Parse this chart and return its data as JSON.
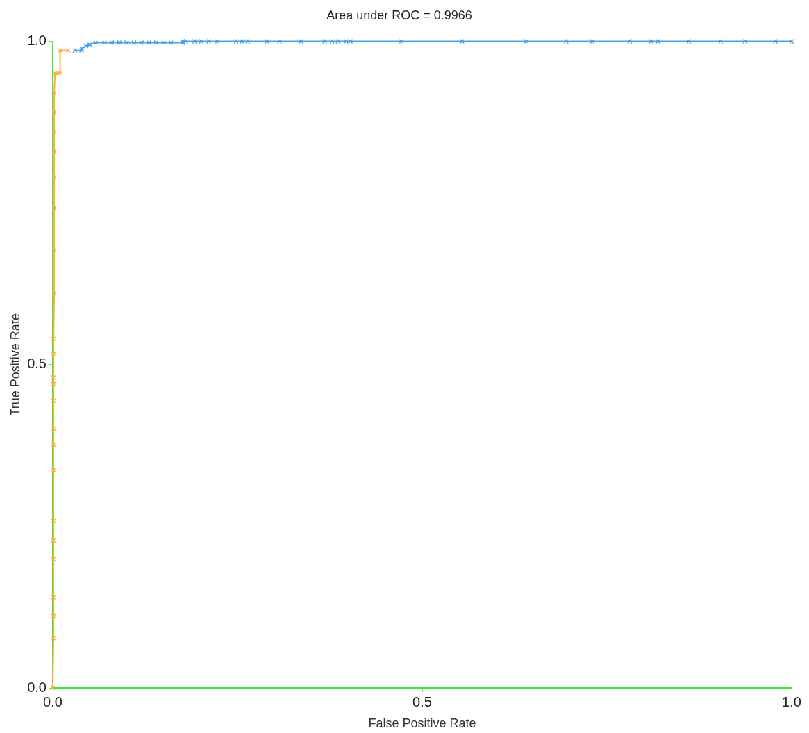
{
  "chart_data": {
    "type": "line",
    "title": "Area under ROC = 0.9966",
    "xlabel": "False Positive Rate",
    "ylabel": "True Positive Rate",
    "xlim": [
      0,
      1
    ],
    "ylim": [
      0,
      1
    ],
    "xticks": [
      {
        "value": 0,
        "label": "0.0"
      },
      {
        "value": 0.5,
        "label": "0.5"
      },
      {
        "value": 1,
        "label": "1.0"
      }
    ],
    "yticks": [
      {
        "value": 0,
        "label": "0.0"
      },
      {
        "value": 0.5,
        "label": "0.5"
      },
      {
        "value": 1,
        "label": "1.0"
      }
    ],
    "grid": false,
    "legend": false,
    "marker": "cross",
    "line_style": "solid",
    "series": [
      {
        "color": "#ffab40",
        "x": [
          0,
          0.001,
          0.001,
          0.001,
          0.001,
          0.001,
          0.001,
          0.001,
          0.001,
          0.001,
          0.001,
          0.001,
          0.001,
          0.001,
          0.001,
          0.002,
          0.002,
          0.002,
          0.002,
          0.002,
          0.002,
          0.002,
          0.002,
          0.003,
          0.003,
          0.01,
          0.01,
          0.021
        ],
        "values": [
          0,
          0.077,
          0.111,
          0.14,
          0.199,
          0.228,
          0.258,
          0.337,
          0.376,
          0.401,
          0.444,
          0.47,
          0.48,
          0.516,
          0.54,
          0.61,
          0.677,
          0.742,
          0.79,
          0.83,
          0.86,
          0.89,
          0.92,
          0.951,
          0.951,
          0.951,
          0.986,
          0.986
        ]
      },
      {
        "color": "#4aa3df",
        "x": [
          0.03,
          0.039,
          0.039,
          0.045,
          0.05,
          0.058,
          0.07,
          0.08,
          0.09,
          0.1,
          0.11,
          0.12,
          0.13,
          0.14,
          0.15,
          0.16,
          0.176,
          0.176,
          0.18,
          0.192,
          0.201,
          0.211,
          0.223,
          0.248,
          0.256,
          0.264,
          0.29,
          0.307,
          0.336,
          0.368,
          0.378,
          0.386,
          0.397,
          0.403,
          0.472,
          0.554,
          0.641,
          0.695,
          0.73,
          0.781,
          0.81,
          0.819,
          0.861,
          0.904,
          0.937,
          0.978,
          1
        ],
        "values": [
          0.986,
          0.986,
          0.989,
          0.993,
          0.995,
          0.998,
          0.998,
          0.998,
          0.998,
          0.998,
          0.998,
          0.998,
          0.998,
          0.998,
          0.998,
          0.998,
          0.998,
          1,
          1,
          1,
          1,
          1,
          1,
          1,
          1,
          1,
          1,
          1,
          1,
          1,
          1,
          1,
          1,
          1,
          1,
          1,
          1,
          1,
          1,
          1,
          1,
          1,
          1,
          1,
          1,
          1,
          1
        ]
      }
    ]
  }
}
